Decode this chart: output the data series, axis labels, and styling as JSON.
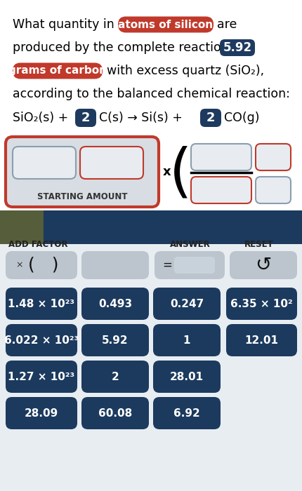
{
  "bg_color": "#f5f5f5",
  "header_bg": "#ffffff",
  "dark_blue": "#1d3557",
  "red_badge": "#c0392b",
  "dark_navy": "#1e3a5f",
  "starting_amount": "STARTING AMOUNT",
  "add_factor": "ADD FACTOR",
  "answer": "ANSWER",
  "reset": "RESET",
  "buttons": [
    [
      "1.48 × 10²³",
      "0.493",
      "0.247",
      "6.35 × 10²"
    ],
    [
      "6.022 × 10²³",
      "5.92",
      "1",
      "12.01"
    ],
    [
      "1.27 × 10²³",
      "2",
      "28.01",
      ""
    ],
    [
      "28.09",
      "60.08",
      "6.92",
      ""
    ]
  ],
  "panel_bg": "#d8dde3",
  "panel_border": "#c0392b",
  "box_bg": "#e8ecf1",
  "box_border_gray": "#8a9faf",
  "box_border_red": "#c0392b",
  "toolbar_bg": "#1c3a5e",
  "toolbar_olive": "#555d3a",
  "button_bg": "#1c3a5e",
  "button_text": "#ffffff",
  "control_bg": "#bcc5ce",
  "bottom_bg": "#e8edf2"
}
